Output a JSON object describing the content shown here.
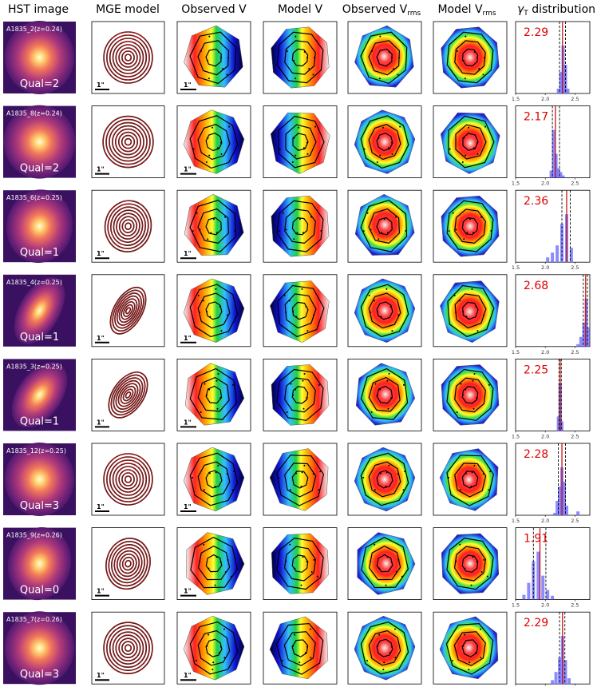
{
  "headers": {
    "hst": "HST image",
    "mge": "MGE model",
    "obsv": "Observed V",
    "modv": "Model V",
    "obsvrms_main": "Observed V",
    "obsvrms_sub": "rms",
    "modvrms_main": "Model V",
    "modvrms_sub": "rms",
    "gamma_sym": "γ",
    "gamma_sub": "T",
    "gamma_rest": " distribution"
  },
  "scale_label": "1\"",
  "hist_ticks": [
    "1.5",
    "2.0",
    "2.5"
  ],
  "hist_range": [
    1.5,
    2.75
  ],
  "colors": {
    "gamma_text": "#e00000",
    "hist_bar": "#6666ff",
    "median_line": "#cc0000"
  },
  "rows": [
    {
      "name": "A1835_2(z=0.24)",
      "qual": "Qual=2",
      "gamma": "2.29",
      "gval": 2.29,
      "lo": 2.24,
      "hi": 2.34,
      "ecc": 0.95,
      "ang": 0,
      "hist": [
        [
          2.22,
          0.1
        ],
        [
          2.26,
          0.45
        ],
        [
          2.3,
          1.0
        ],
        [
          2.34,
          0.6
        ],
        [
          2.38,
          0.1
        ]
      ]
    },
    {
      "name": "A1835_8(z=0.24)",
      "qual": "Qual=2",
      "gamma": "2.17",
      "gval": 2.17,
      "lo": 2.12,
      "hi": 2.24,
      "ecc": 0.98,
      "ang": 0,
      "hist": [
        [
          2.1,
          0.15
        ],
        [
          2.14,
          1.0
        ],
        [
          2.18,
          0.5
        ],
        [
          2.22,
          0.2
        ],
        [
          2.26,
          0.12
        ],
        [
          2.3,
          0.05
        ]
      ]
    },
    {
      "name": "A1835_6(z=0.25)",
      "qual": "Qual=1",
      "gamma": "2.36",
      "gval": 2.36,
      "lo": 2.28,
      "hi": 2.42,
      "ecc": 0.9,
      "ang": 10,
      "hist": [
        [
          2.04,
          0.1
        ],
        [
          2.12,
          0.2
        ],
        [
          2.2,
          0.35
        ],
        [
          2.28,
          0.8
        ],
        [
          2.36,
          1.0
        ],
        [
          2.44,
          0.3
        ]
      ]
    },
    {
      "name": "A1835_4(z=0.25)",
      "qual": "Qual=1",
      "gamma": "2.68",
      "gval": 2.68,
      "lo": 2.64,
      "hi": 2.71,
      "ecc": 0.55,
      "ang": 30,
      "hist": [
        [
          2.55,
          0.05
        ],
        [
          2.6,
          0.2
        ],
        [
          2.65,
          0.5
        ],
        [
          2.69,
          1.0
        ],
        [
          2.72,
          0.4
        ]
      ]
    },
    {
      "name": "A1835_3(z=0.25)",
      "qual": "Qual=1",
      "gamma": "2.25",
      "gval": 2.25,
      "lo": 2.23,
      "hi": 2.27,
      "ecc": 0.6,
      "ang": 35,
      "hist": [
        [
          2.22,
          0.3
        ],
        [
          2.25,
          1.0
        ],
        [
          2.28,
          0.2
        ]
      ]
    },
    {
      "name": "A1835_12(z=0.25)",
      "qual": "Qual=3",
      "gamma": "2.28",
      "gval": 2.28,
      "lo": 2.22,
      "hi": 2.34,
      "ecc": 0.95,
      "ang": 0,
      "hist": [
        [
          2.16,
          0.05
        ],
        [
          2.2,
          0.3
        ],
        [
          2.24,
          0.6
        ],
        [
          2.28,
          1.0
        ],
        [
          2.32,
          0.7
        ],
        [
          2.36,
          0.2
        ],
        [
          2.55,
          0.08
        ]
      ]
    },
    {
      "name": "A1835_9(z=0.26)",
      "qual": "Qual=0",
      "gamma": "1.91",
      "gval": 1.91,
      "lo": 1.8,
      "hi": 2.01,
      "ecc": 0.85,
      "ang": 15,
      "hist": [
        [
          1.64,
          0.1
        ],
        [
          1.72,
          0.35
        ],
        [
          1.8,
          0.8
        ],
        [
          1.88,
          1.0
        ],
        [
          1.96,
          0.5
        ],
        [
          2.04,
          0.2
        ],
        [
          2.12,
          0.08
        ]
      ]
    },
    {
      "name": "A1835_7(z=0.26)",
      "qual": "Qual=3",
      "gamma": "2.29",
      "gval": 2.29,
      "lo": 2.24,
      "hi": 2.33,
      "ecc": 0.95,
      "ang": 0,
      "hist": [
        [
          2.12,
          0.08
        ],
        [
          2.18,
          0.25
        ],
        [
          2.24,
          0.55
        ],
        [
          2.29,
          1.0
        ],
        [
          2.34,
          0.5
        ],
        [
          2.4,
          0.12
        ]
      ]
    }
  ]
}
